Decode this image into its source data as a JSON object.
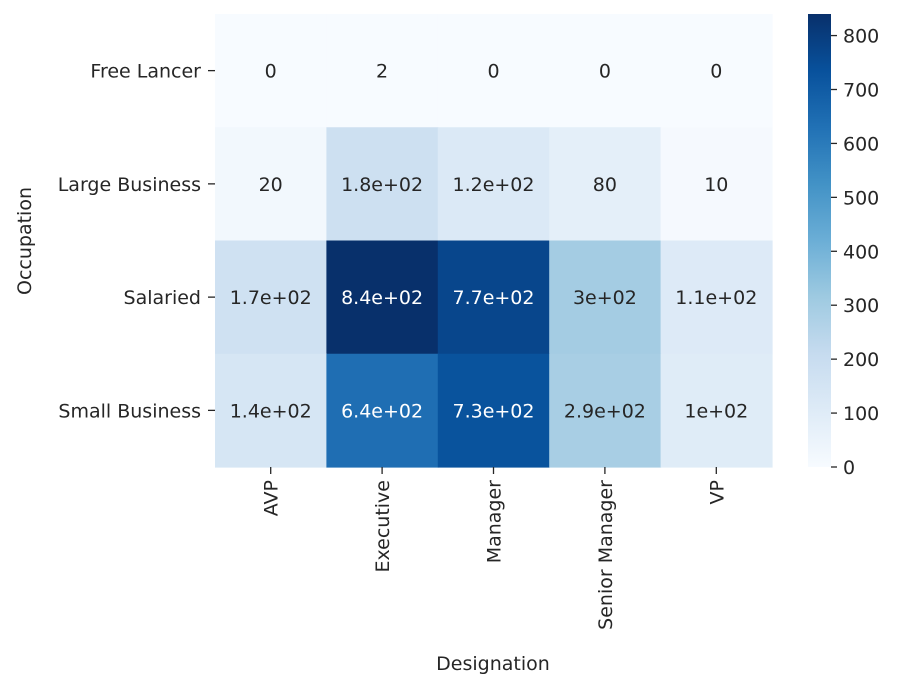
{
  "chart_data": {
    "type": "heatmap",
    "colormap": "Blues",
    "xlabel": "Designation",
    "ylabel": "Occupation",
    "x_categories": [
      "AVP",
      "Executive",
      "Manager",
      "Senior Manager",
      "VP"
    ],
    "y_categories": [
      "Free Lancer",
      "Large Business",
      "Salaried",
      "Small Business"
    ],
    "values": [
      [
        0,
        2,
        0,
        0,
        0
      ],
      [
        20,
        180,
        120,
        80,
        10
      ],
      [
        170,
        840,
        770,
        300,
        110
      ],
      [
        140,
        640,
        730,
        290,
        100
      ]
    ],
    "annotations": [
      [
        "0",
        "2",
        "0",
        "0",
        "0"
      ],
      [
        "20",
        "1.8e+02",
        "1.2e+02",
        "80",
        "10"
      ],
      [
        "1.7e+02",
        "8.4e+02",
        "7.7e+02",
        "3e+02",
        "1.1e+02"
      ],
      [
        "1.4e+02",
        "6.4e+02",
        "7.3e+02",
        "2.9e+02",
        "1e+02"
      ]
    ],
    "colorbar": {
      "range": [
        0,
        840
      ],
      "ticks": [
        0,
        100,
        200,
        300,
        400,
        500,
        600,
        700,
        800
      ]
    },
    "grid": false,
    "legend": "colorbar right"
  }
}
